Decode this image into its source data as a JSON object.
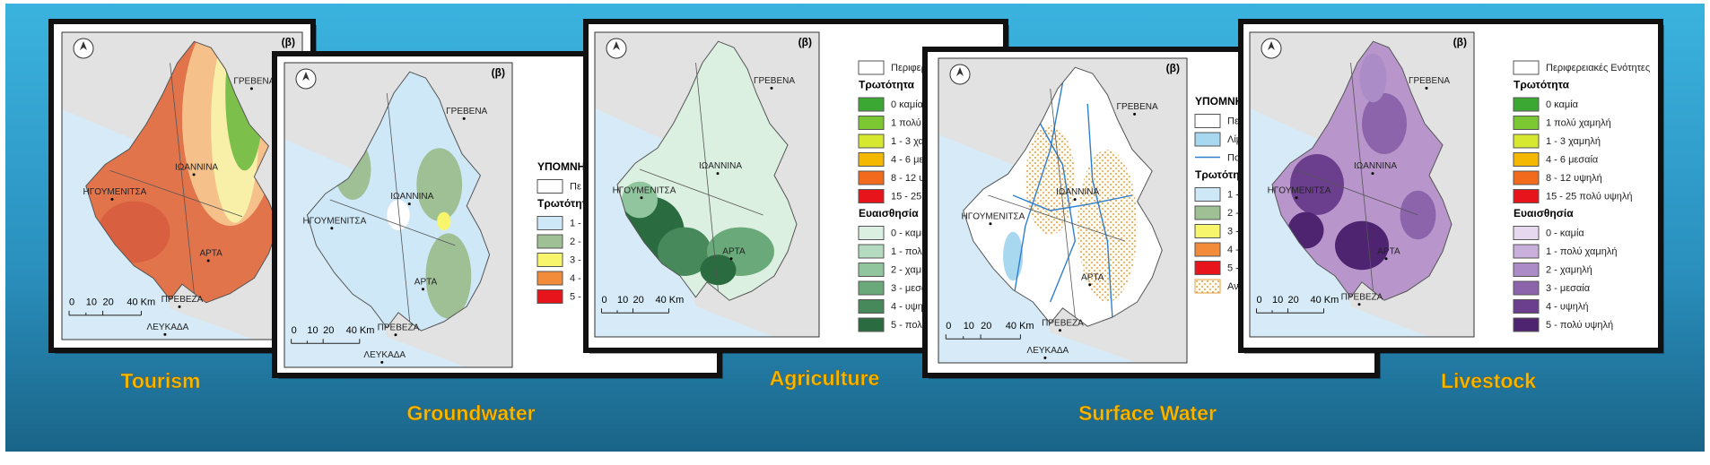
{
  "panels": [
    {
      "label": "Tourism",
      "tag": "(β)",
      "places": [
        "ΓΡΕΒΕΝΑ",
        "ΙΩΑΝΝΙΝΑ",
        "ΗΓΟΥΜΕΝΙΤΣΑ",
        "ΑΡΤΑ",
        "ΠΡΕΒΕΖΑ",
        "ΛΕΥΚΑΔΑ"
      ],
      "scale": [
        "0",
        "10",
        "20",
        "40 Km"
      ]
    },
    {
      "label": "Groundwater",
      "tag": "(β)",
      "places": [
        "ΓΡΕΒΕΝΑ",
        "ΙΩΑΝΝΙΝΑ",
        "ΗΓΟΥΜΕΝΙΤΣΑ",
        "ΑΡΤΑ",
        "ΠΡΕΒΕΖΑ",
        "ΛΕΥΚΑΔΑ"
      ],
      "scale": [
        "0",
        "10",
        "20",
        "40 Km"
      ],
      "legend": [
        {
          "text": "ΥΠΟΜΝΗ"
        },
        {
          "text": "Πε",
          "color": "#ffffff"
        },
        {
          "text": "Τρωτότητ"
        },
        {
          "text": "1 -",
          "color": "#cfe8f8"
        },
        {
          "text": "2 -",
          "color": "#9fbf95"
        },
        {
          "text": "3 -",
          "color": "#f7f56b"
        },
        {
          "text": "4 -",
          "color": "#f28b3a"
        },
        {
          "text": "5 -",
          "color": "#e8141c"
        }
      ]
    },
    {
      "label": "Agriculture",
      "tag": "(β)",
      "places": [
        "ΓΡΕΒΕΝΑ",
        "ΙΩΑΝΝΙΝΑ",
        "ΗΓΟΥΜΕΝΙΤΣΑ",
        "ΑΡΤΑ"
      ],
      "scale": [
        "0",
        "10",
        "20",
        "40 Km"
      ],
      "legend": [
        {
          "text": "Περιφερ",
          "color": "#ffffff"
        },
        {
          "text": "Τρωτότητα"
        },
        {
          "text": "0 καμία",
          "color": "#3aa832"
        },
        {
          "text": "1 πολύ",
          "color": "#7cc832"
        },
        {
          "text": "1 - 3 χαμη",
          "color": "#d6e830"
        },
        {
          "text": "4 - 6 μεσ",
          "color": "#f5b800"
        },
        {
          "text": "8 - 12 υψ",
          "color": "#f26a1b"
        },
        {
          "text": "15 - 25",
          "color": "#e8141c"
        },
        {
          "text": "Ευαισθησία"
        },
        {
          "text": "0 - καμία",
          "color": "#dcf0e2"
        },
        {
          "text": "1 - πολύ",
          "color": "#b4dbbf"
        },
        {
          "text": "2 - χαμη",
          "color": "#91c59d"
        },
        {
          "text": "3 - μεσα",
          "color": "#6aa97a"
        },
        {
          "text": "4 - υψηλ",
          "color": "#47895a"
        },
        {
          "text": "5 - πολύ",
          "color": "#2a6b3f"
        }
      ]
    },
    {
      "label": "Surface Water",
      "tag": "(β)",
      "places": [
        "ΓΡΕΒΕΝΑ",
        "ΙΩΑΝΝΙΝΑ",
        "ΗΓΟΥΜΕΝΙΤΣΑ",
        "ΑΡΤΑ",
        "ΠΡΕΒΕΖΑ",
        "ΛΕΥΚΑΔΑ"
      ],
      "scale": [
        "0",
        "10",
        "20",
        "40 Km"
      ],
      "legend": [
        {
          "text": "ΥΠΟΜΝΗ"
        },
        {
          "text": "Πε",
          "color": "#ffffff"
        },
        {
          "text": "Λίμ",
          "color": "#a8d8f0"
        },
        {
          "text": "Πο",
          "color": "#2f7fd0",
          "style": "line"
        },
        {
          "text": "Τρωτότητα"
        },
        {
          "text": "1 -",
          "color": "#cfe8f8"
        },
        {
          "text": "2 -",
          "color": "#9fbf95"
        },
        {
          "text": "3 -",
          "color": "#f7f56b"
        },
        {
          "text": "4 -",
          "color": "#f28b3a"
        },
        {
          "text": "5 -",
          "color": "#e8141c"
        },
        {
          "text": "Αν",
          "color": "#e0a040",
          "style": "dots"
        }
      ]
    },
    {
      "label": "Livestock",
      "tag": "(β)",
      "places": [
        "ΓΡΕΒΕΝΑ",
        "ΙΩΑΝΝΙΝΑ",
        "ΗΓΟΥΜΕΝΙΤΣΑ",
        "ΑΡΤΑ",
        "ΠΡΕΒΕΖΑ"
      ],
      "scale": [
        "0",
        "10",
        "20",
        "40 Km"
      ],
      "legend": [
        {
          "text": "Περιφερειακές Ενότητες",
          "color": "#ffffff"
        },
        {
          "text": "Τρωτότητα"
        },
        {
          "text": "0 καμία",
          "color": "#3aa832"
        },
        {
          "text": "1 πολύ χαμηλή",
          "color": "#7cc832"
        },
        {
          "text": "1 - 3 χαμηλή",
          "color": "#d6e830"
        },
        {
          "text": "4 - 6 μεσαία",
          "color": "#f5b800"
        },
        {
          "text": "8 - 12 υψηλή",
          "color": "#f26a1b"
        },
        {
          "text": "15 - 25 πολύ υψηλή",
          "color": "#e8141c"
        },
        {
          "text": "Ευαισθησία"
        },
        {
          "text": "0 - καμία",
          "color": "#e6d8ef"
        },
        {
          "text": "1 - πολύ χαμηλή",
          "color": "#c9b0dc"
        },
        {
          "text": "2 - χαμηλή",
          "color": "#ac8cc6"
        },
        {
          "text": "3 - μεσαία",
          "color": "#8c64ac"
        },
        {
          "text": "4 - υψηλή",
          "color": "#6c3f8e"
        },
        {
          "text": "5 - πολύ υψηλή",
          "color": "#4e2370"
        }
      ]
    }
  ]
}
